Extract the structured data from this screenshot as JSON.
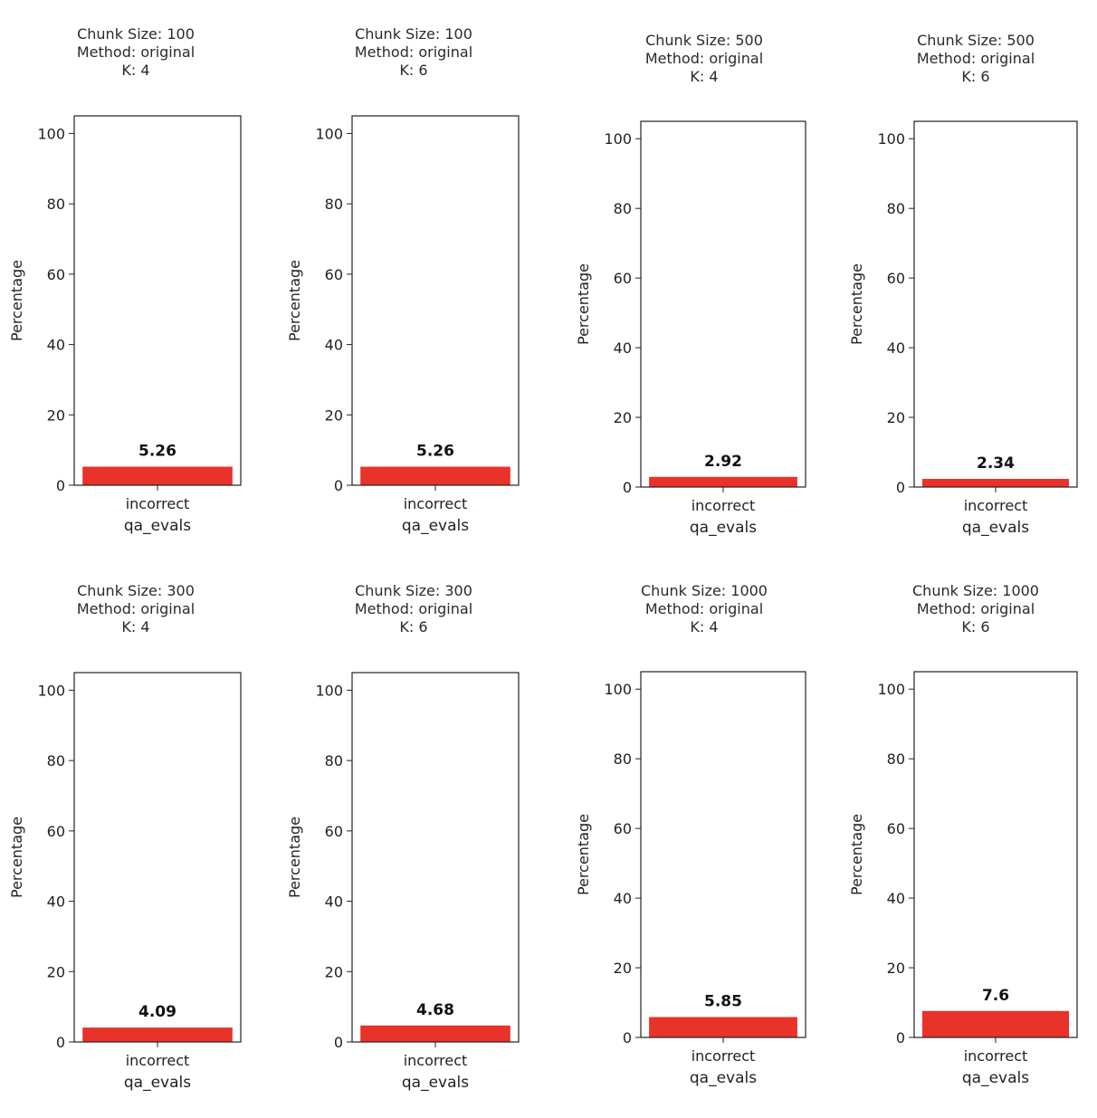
{
  "chart_data": [
    {
      "type": "bar",
      "title_lines": [
        "Chunk Size: 100",
        "Method: original",
        "K: 4"
      ],
      "categories": [
        "incorrect"
      ],
      "values": [
        5.26
      ],
      "value_labels": [
        "5.26"
      ],
      "xlabel": "qa_evals",
      "ylabel": "Percentage",
      "ylim": [
        0,
        105
      ],
      "yticks": [
        0,
        20,
        40,
        60,
        80,
        100
      ],
      "color": "#e8322a",
      "grid": false
    },
    {
      "type": "bar",
      "title_lines": [
        "Chunk Size: 100",
        "Method: original",
        "K: 6"
      ],
      "categories": [
        "incorrect"
      ],
      "values": [
        5.26
      ],
      "value_labels": [
        "5.26"
      ],
      "xlabel": "qa_evals",
      "ylabel": "Percentage",
      "ylim": [
        0,
        105
      ],
      "yticks": [
        0,
        20,
        40,
        60,
        80,
        100
      ],
      "color": "#e8322a",
      "grid": false
    },
    {
      "type": "bar",
      "title_lines": [
        "Chunk Size: 500",
        "Method: original",
        "K: 4"
      ],
      "categories": [
        "incorrect"
      ],
      "values": [
        2.92
      ],
      "value_labels": [
        "2.92"
      ],
      "xlabel": "qa_evals",
      "ylabel": "Percentage",
      "ylim": [
        0,
        105
      ],
      "yticks": [
        0,
        20,
        40,
        60,
        80,
        100
      ],
      "color": "#e8322a",
      "grid": false
    },
    {
      "type": "bar",
      "title_lines": [
        "Chunk Size: 500",
        "Method: original",
        "K: 6"
      ],
      "categories": [
        "incorrect"
      ],
      "values": [
        2.34
      ],
      "value_labels": [
        "2.34"
      ],
      "xlabel": "qa_evals",
      "ylabel": "Percentage",
      "ylim": [
        0,
        105
      ],
      "yticks": [
        0,
        20,
        40,
        60,
        80,
        100
      ],
      "color": "#e8322a",
      "grid": false
    },
    {
      "type": "bar",
      "title_lines": [
        "Chunk Size: 300",
        "Method: original",
        "K: 4"
      ],
      "categories": [
        "incorrect"
      ],
      "values": [
        4.09
      ],
      "value_labels": [
        "4.09"
      ],
      "xlabel": "qa_evals",
      "ylabel": "Percentage",
      "ylim": [
        0,
        105
      ],
      "yticks": [
        0,
        20,
        40,
        60,
        80,
        100
      ],
      "color": "#e8322a",
      "grid": false
    },
    {
      "type": "bar",
      "title_lines": [
        "Chunk Size: 300",
        "Method: original",
        "K: 6"
      ],
      "categories": [
        "incorrect"
      ],
      "values": [
        4.68
      ],
      "value_labels": [
        "4.68"
      ],
      "xlabel": "qa_evals",
      "ylabel": "Percentage",
      "ylim": [
        0,
        105
      ],
      "yticks": [
        0,
        20,
        40,
        60,
        80,
        100
      ],
      "color": "#e8322a",
      "grid": false
    },
    {
      "type": "bar",
      "title_lines": [
        "Chunk Size: 1000",
        "Method: original",
        "K: 4"
      ],
      "categories": [
        "incorrect"
      ],
      "values": [
        5.85
      ],
      "value_labels": [
        "5.85"
      ],
      "xlabel": "qa_evals",
      "ylabel": "Percentage",
      "ylim": [
        0,
        105
      ],
      "yticks": [
        0,
        20,
        40,
        60,
        80,
        100
      ],
      "color": "#e8322a",
      "grid": false
    },
    {
      "type": "bar",
      "title_lines": [
        "Chunk Size: 1000",
        "Method: original",
        "K: 6"
      ],
      "categories": [
        "incorrect"
      ],
      "values": [
        7.6
      ],
      "value_labels": [
        "7.6"
      ],
      "xlabel": "qa_evals",
      "ylabel": "Percentage",
      "ylim": [
        0,
        105
      ],
      "yticks": [
        0,
        20,
        40,
        60,
        80,
        100
      ],
      "color": "#e8322a",
      "grid": false
    }
  ]
}
